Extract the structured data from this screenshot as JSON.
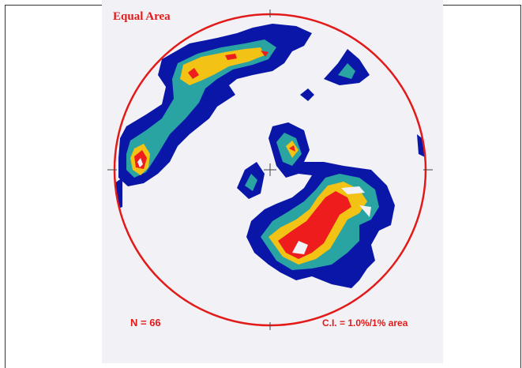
{
  "title": "Equal Area",
  "n_label": "N = 66",
  "ci_label": "C.I. = 1.0%/1% area",
  "colors": {
    "circle": "#e21a1a",
    "level1": "#0a16a8",
    "level2": "#2aa3a3",
    "level3": "#f2c214",
    "level4": "#ee1c1c",
    "background": "#f2f2f6"
  }
}
